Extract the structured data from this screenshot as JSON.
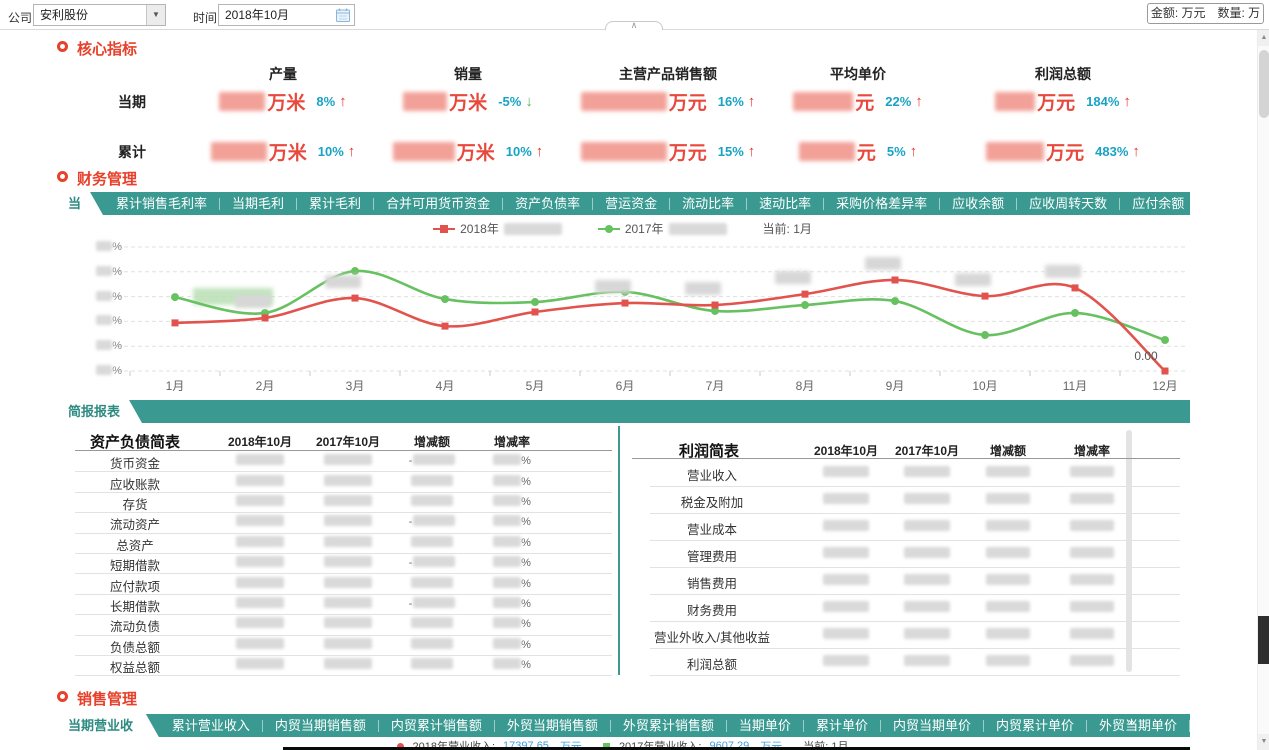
{
  "toolbar": {
    "company_label": "公司",
    "company_value": "安利股份",
    "time_label": "时间",
    "time_value": "2018年10月",
    "unit_note": "金额: 万元　数量: 万"
  },
  "core": {
    "title": "核心指标",
    "columns": [
      "产量",
      "销量",
      "主营产品销售额",
      "平均单价",
      "利润总额"
    ],
    "rows": [
      {
        "label": "当期",
        "cells": [
          {
            "value_masked": true,
            "unit": "万米",
            "change": "8%",
            "dir": "up"
          },
          {
            "value_masked": true,
            "unit": "万米",
            "change": "-5%",
            "dir": "down"
          },
          {
            "value_masked": true,
            "unit": "万元",
            "change": "16%",
            "dir": "up"
          },
          {
            "value_masked": true,
            "unit": "元",
            "change": "22%",
            "dir": "up"
          },
          {
            "value_masked": true,
            "unit": "万元",
            "change": "184%",
            "dir": "up"
          }
        ]
      },
      {
        "label": "累计",
        "cells": [
          {
            "value_masked": true,
            "unit": "万米",
            "change": "10%",
            "dir": "up"
          },
          {
            "value_masked": true,
            "unit": "万米",
            "change": "10%",
            "dir": "up"
          },
          {
            "value_masked": true,
            "unit": "万元",
            "change": "15%",
            "dir": "up"
          },
          {
            "value_masked": true,
            "unit": "元",
            "change": "5%",
            "dir": "up"
          },
          {
            "value_masked": true,
            "unit": "万元",
            "change": "483%",
            "dir": "up"
          }
        ]
      }
    ]
  },
  "finance": {
    "title": "财务管理",
    "active_tab": "当期销售毛利率",
    "tabs": [
      "累计销售毛利率",
      "当期毛利",
      "累计毛利",
      "合并可用货币资金",
      "资产负债率",
      "营运资金",
      "流动比率",
      "速动比率",
      "采购价格差异率",
      "应收余额",
      "应收周转天数",
      "应付余额"
    ],
    "legend": {
      "s1": "2018年",
      "s1_masked": true,
      "s2": "2017年",
      "s2_masked": true,
      "current": "当前: 1月"
    }
  },
  "chart_data": {
    "type": "line",
    "title": "当期销售毛利率",
    "x": [
      "1月",
      "2月",
      "3月",
      "4月",
      "5月",
      "6月",
      "7月",
      "8月",
      "9月",
      "10月",
      "11月",
      "12月"
    ],
    "series": [
      {
        "name": "2018年",
        "label_masked": true,
        "color": "#e2534d",
        "marker": "square",
        "values": [
          1.94,
          2.14,
          2.94,
          1.81,
          2.38,
          2.74,
          2.66,
          3.1,
          3.67,
          3.02,
          3.35,
          0.0
        ]
      },
      {
        "name": "2017年",
        "label_masked": true,
        "color": "#67c161",
        "marker": "circle",
        "values": [
          2.98,
          2.34,
          4.03,
          2.9,
          2.78,
          3.19,
          2.42,
          2.66,
          2.82,
          1.45,
          2.34,
          1.25
        ]
      }
    ],
    "value_note": "y tick labels are blurred in source; values estimated in gridline units",
    "y_axis": {
      "ticks": 6,
      "range": [
        0,
        5
      ],
      "labels_masked": true,
      "suffix": "%"
    },
    "grid": "horizontal-dashed",
    "legend_position": "top-center",
    "current_marker": "当前: 1月",
    "annotations": [
      {
        "x": "12月",
        "series": "2018年",
        "text": "0.00"
      }
    ],
    "masked_point_labels": [
      "1月",
      "2月",
      "3月",
      "6月",
      "7月",
      "8月",
      "9月",
      "10月",
      "11月"
    ]
  },
  "report": {
    "tab": "简报报表",
    "balance": {
      "title": "资产负债简表",
      "columns": [
        "2018年10月",
        "2017年10月",
        "增减额",
        "增减率"
      ],
      "rows": [
        "货币资金",
        "应收账款",
        "存货",
        "流动资产",
        "总资产",
        "短期借款",
        "应付款项",
        "长期借款",
        "流动负债",
        "负债总额",
        "权益总额"
      ],
      "values_masked": true,
      "rate_suffix": "%",
      "negative_rows": [
        0,
        3,
        5,
        7
      ]
    },
    "profit": {
      "title": "利润简表",
      "columns": [
        "2018年10月",
        "2017年10月",
        "增减额",
        "增减率"
      ],
      "rows": [
        "营业收入",
        "税金及附加",
        "营业成本",
        "管理费用",
        "销售费用",
        "财务费用",
        "营业外收入/其他收益",
        "利润总额"
      ],
      "values_masked": true
    }
  },
  "sales": {
    "title": "销售管理",
    "active_tab": "当期营业收入",
    "tabs": [
      "累计营业收入",
      "内贸当期销售额",
      "内贸累计销售额",
      "外贸当期销售额",
      "外贸累计销售额",
      "当期单价",
      "累计单价",
      "内贸当期单价",
      "内贸累计单价",
      "外贸当期单价"
    ],
    "more_indicator": "»",
    "legend": {
      "items": [
        {
          "name": "2018年营业收入:",
          "value": "17397.65",
          "unit": "万元",
          "color": "#e2534d",
          "marker": "dot"
        },
        {
          "name": "2017年营业收入:",
          "value": "9607.29",
          "unit": "万元",
          "color": "#67c161",
          "marker": "square"
        }
      ],
      "current": "当前: 1月"
    }
  },
  "scrollbar": {
    "up": "▲",
    "down": "▼"
  },
  "colors": {
    "teal": "#3a9a91",
    "section_red": "#e8402a",
    "value_red": "#e8493c",
    "change_teal": "#18a3c4",
    "up": "#e8392a",
    "down": "#52b852",
    "line_red": "#e2534d",
    "line_green": "#67c161"
  }
}
